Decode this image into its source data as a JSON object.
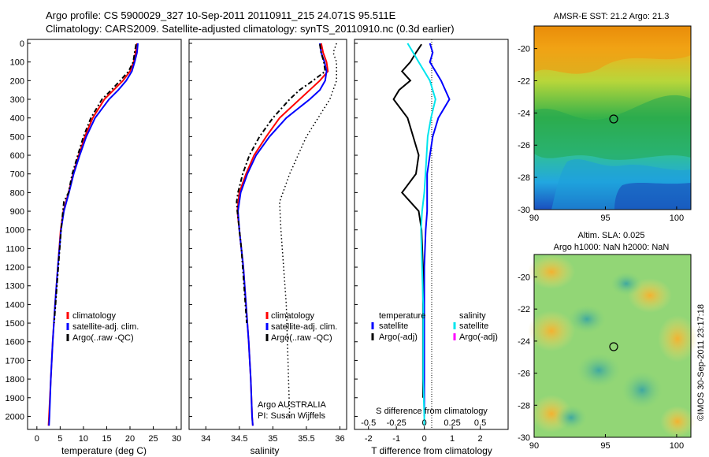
{
  "header": {
    "line1": "Argo profile: CS 5900029_327 10-Sep-2011 20110911_215 24.071S 95.511E",
    "line2": "Climatology: CARS2009. Satellite-adjusted climatology: synTS_20110910.nc (0.3d earlier)"
  },
  "depth_ticks": [
    0,
    100,
    200,
    300,
    400,
    500,
    600,
    700,
    800,
    900,
    1000,
    1100,
    1200,
    1300,
    1400,
    1500,
    1600,
    1700,
    1800,
    1900,
    2000
  ],
  "colors": {
    "climatology": "#ff0000",
    "satellite": "#0000ff",
    "argo": "#000000",
    "sal_sat": "#00e5ee",
    "sal_argo": "#ff00ff"
  },
  "temperature_panel": {
    "xlabel": "temperature (deg C)",
    "xticks": [
      "0",
      "5",
      "10",
      "15",
      "20",
      "25",
      "30"
    ],
    "legend": [
      "climatology",
      "satellite-adj. clim.",
      "Argo(..raw -QC)"
    ]
  },
  "salinity_panel": {
    "xlabel": "salinity",
    "xticks": [
      "34",
      "34.5",
      "35",
      "35.5",
      "36"
    ],
    "legend": [
      "climatology",
      "satellite-adj. clim.",
      "Argo(..raw -QC)"
    ],
    "note1": "Argo AUSTRALIA",
    "note2": "PI: Susan Wijffels"
  },
  "difference_panel": {
    "xlabel": "T difference from climatology",
    "xticks": [
      "-2",
      "-1",
      "0",
      "1",
      "2"
    ],
    "top_label": "S difference from climatology",
    "top_ticks": [
      "-0.5",
      "-0.25",
      "0",
      "0.25",
      "0.5"
    ],
    "legend_temp_title": "temperature",
    "legend_sal_title": "salinity",
    "legend_temp": [
      "satellite",
      "Argo(-adj)"
    ],
    "legend_sal": [
      "satellite",
      "Argo(-adj)"
    ]
  },
  "sst_map": {
    "title": "AMSR-E SST: 21.2 Argo: 21.3",
    "yticks": [
      "-20",
      "-22",
      "-24",
      "-26",
      "-28",
      "-30"
    ],
    "xticks": [
      "90",
      "95",
      "100"
    ]
  },
  "sla_map": {
    "title1": "Altim. SLA: 0.025",
    "title2": "Argo h1000: NaN h2000: NaN",
    "yticks": [
      "-20",
      "-22",
      "-24",
      "-26",
      "-28",
      "-30"
    ],
    "xticks": [
      "90",
      "95",
      "100"
    ]
  },
  "footer_stamp": "©IMOS 30-Sep-2011 23:17:18",
  "chart_data": [
    {
      "type": "line",
      "xlabel": "temperature (deg C)",
      "xlim": [
        -2,
        31
      ],
      "ylim": [
        2050,
        0
      ],
      "series": [
        {
          "name": "climatology",
          "depth": [
            0,
            50,
            100,
            150,
            200,
            250,
            300,
            400,
            500,
            600,
            700,
            800,
            900,
            1000,
            1200,
            1400,
            1600,
            1800,
            2000,
            2050
          ],
          "values": [
            21.5,
            21.2,
            20.8,
            20.0,
            18.5,
            16.5,
            14.5,
            12.0,
            10.3,
            9.0,
            7.8,
            6.8,
            5.7,
            5.1,
            4.5,
            3.9,
            3.4,
            3.0,
            2.6,
            2.5
          ]
        },
        {
          "name": "satellite-adj. clim.",
          "depth": [
            0,
            50,
            100,
            150,
            200,
            250,
            300,
            400,
            500,
            600,
            700,
            800,
            900,
            1000,
            1200,
            1400,
            1600,
            1800,
            2000,
            2050
          ],
          "values": [
            21.7,
            21.5,
            21.0,
            20.4,
            19.2,
            17.5,
            15.5,
            12.5,
            10.6,
            9.2,
            7.9,
            6.9,
            5.8,
            5.2,
            4.5,
            3.9,
            3.4,
            3.0,
            2.7,
            2.6
          ]
        },
        {
          "name": "Argo(..raw -QC)",
          "depth": [
            5,
            50,
            100,
            150,
            200,
            250,
            300,
            400,
            500,
            600,
            700,
            800,
            850,
            900,
            1000,
            1100,
            1200,
            1300,
            1400,
            1500
          ],
          "values": [
            21.3,
            21.0,
            20.7,
            19.7,
            17.9,
            16.0,
            14.0,
            11.6,
            10.0,
            8.8,
            7.6,
            6.8,
            5.8,
            5.6,
            5.2,
            4.9,
            4.6,
            4.3,
            4.0,
            3.7
          ]
        }
      ]
    },
    {
      "type": "line",
      "xlabel": "salinity",
      "xlim": [
        33.75,
        36.1
      ],
      "ylim": [
        2050,
        0
      ],
      "series": [
        {
          "name": "climatology",
          "depth": [
            0,
            50,
            100,
            150,
            200,
            250,
            300,
            400,
            500,
            600,
            700,
            800,
            900,
            1000,
            1200,
            1400,
            1600,
            1800,
            2000,
            2050
          ],
          "values": [
            35.72,
            35.75,
            35.8,
            35.82,
            35.7,
            35.55,
            35.4,
            35.1,
            34.9,
            34.72,
            34.6,
            34.5,
            34.47,
            34.5,
            34.56,
            34.6,
            34.64,
            34.67,
            34.69,
            34.7
          ]
        },
        {
          "name": "satellite-adj. clim.",
          "depth": [
            0,
            50,
            100,
            150,
            200,
            250,
            300,
            400,
            500,
            600,
            700,
            800,
            900,
            1000,
            1200,
            1400,
            1600,
            1800,
            2000,
            2050
          ],
          "values": [
            35.7,
            35.72,
            35.77,
            35.8,
            35.78,
            35.7,
            35.55,
            35.2,
            34.95,
            34.75,
            34.62,
            34.52,
            34.48,
            34.5,
            34.56,
            34.6,
            34.64,
            34.67,
            34.69,
            34.7
          ]
        },
        {
          "name": "Argo(..raw -QC)",
          "depth": [
            5,
            50,
            100,
            150,
            200,
            250,
            300,
            400,
            500,
            600,
            700,
            800,
            850,
            900,
            1000,
            1100,
            1200,
            1300,
            1400,
            1500
          ],
          "values": [
            35.7,
            35.72,
            35.76,
            35.78,
            35.6,
            35.4,
            35.25,
            35.0,
            34.8,
            34.65,
            34.55,
            34.48,
            34.46,
            34.47,
            34.5,
            34.53,
            34.55,
            34.57,
            34.59,
            34.61
          ]
        }
      ]
    },
    {
      "type": "line",
      "xlabel": "T difference from climatology",
      "xlim": [
        -2.5,
        3
      ],
      "ylim": [
        2050,
        0
      ],
      "series": [
        {
          "name": "satellite (temperature)",
          "depth": [
            0,
            50,
            100,
            150,
            200,
            300,
            400,
            500,
            600,
            700,
            800,
            900,
            1000,
            1200,
            1400,
            1600,
            1800,
            2000
          ],
          "values": [
            0.2,
            0.3,
            0.2,
            0.4,
            0.6,
            0.9,
            0.5,
            0.3,
            0.2,
            0.1,
            0.1,
            0.1,
            0.05,
            0.0,
            0.0,
            0.0,
            0.0,
            0.0
          ]
        },
        {
          "name": "Argo(-adj) (temperature)",
          "depth": [
            5,
            50,
            100,
            150,
            200,
            250,
            300,
            400,
            500,
            600,
            700,
            800,
            850,
            900,
            1000,
            1200,
            1400,
            1600,
            1800,
            1900
          ],
          "values": [
            -0.1,
            -0.3,
            -0.5,
            -0.8,
            -0.5,
            -0.9,
            -1.1,
            -0.6,
            -0.4,
            -0.2,
            -0.3,
            -0.8,
            -0.5,
            -0.2,
            -0.1,
            -0.05,
            -0.05,
            -0.05,
            -0.05,
            -0.05
          ]
        },
        {
          "name": "satellite (salinity)",
          "depth": [
            0,
            50,
            100,
            150,
            200,
            300,
            400,
            500,
            600,
            700,
            800,
            900,
            1000,
            1200,
            1400,
            1600,
            1800,
            2000,
            2050
          ],
          "values": [
            -0.15,
            -0.1,
            -0.05,
            0.0,
            0.05,
            0.1,
            0.06,
            0.03,
            0.02,
            0.01,
            0.0,
            -0.02,
            -0.03,
            -0.02,
            -0.01,
            -0.01,
            -0.01,
            0.0,
            0.0
          ]
        }
      ]
    }
  ]
}
